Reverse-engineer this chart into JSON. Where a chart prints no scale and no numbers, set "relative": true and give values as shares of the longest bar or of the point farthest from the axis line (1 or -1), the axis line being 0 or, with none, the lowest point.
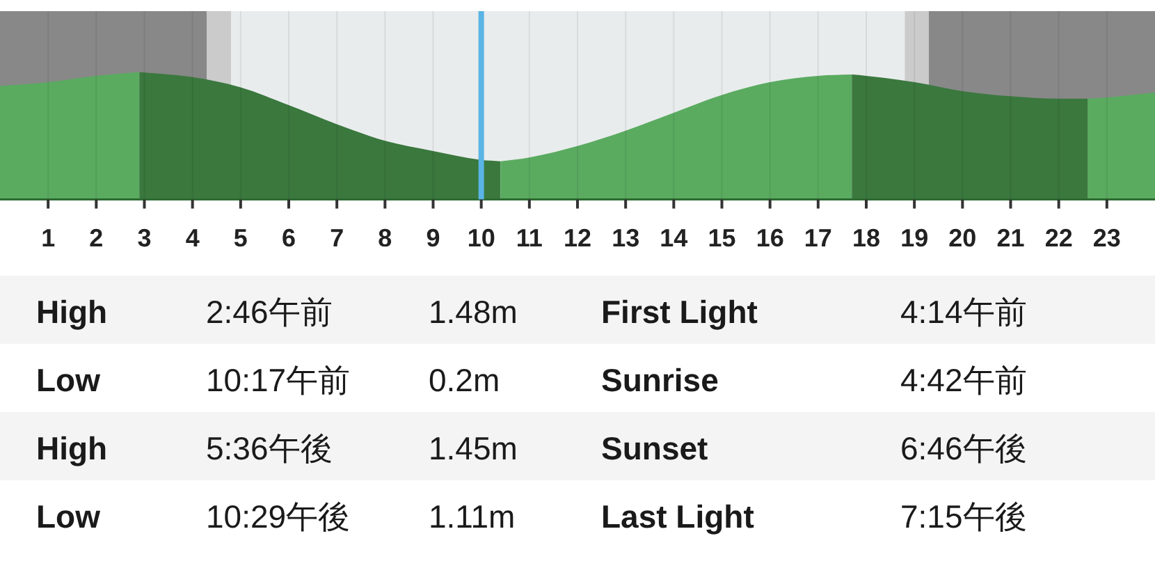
{
  "chart_data": [
    {
      "type": "area",
      "relative": true,
      "xlim": [
        0,
        24
      ],
      "xticks": [
        1,
        2,
        3,
        4,
        5,
        6,
        7,
        8,
        9,
        10,
        11,
        12,
        13,
        14,
        15,
        16,
        17,
        18,
        19,
        20,
        21,
        22,
        23
      ],
      "grid": "x",
      "tick_labels": "x",
      "series": [
        {
          "color": "#5aab60",
          "x": [
            0,
            1,
            2,
            2.9
          ],
          "values": [
            0.89,
            0.92,
            0.97,
            1
          ]
        },
        {
          "color": "#3a783e",
          "x": [
            2.9,
            4,
            5,
            6,
            7,
            8,
            9,
            10,
            10.4
          ],
          "values": [
            1,
            0.96,
            0.88,
            0.74,
            0.59,
            0.46,
            0.38,
            0.31,
            0.3
          ]
        },
        {
          "color": "#5aab60",
          "x": [
            10.4,
            11,
            12,
            13,
            14,
            15,
            16,
            17,
            17.7
          ],
          "values": [
            0.3,
            0.33,
            0.42,
            0.54,
            0.68,
            0.82,
            0.92,
            0.97,
            0.98
          ]
        },
        {
          "color": "#3a783e",
          "x": [
            17.7,
            18,
            19,
            20,
            21,
            22,
            22.6
          ],
          "values": [
            0.98,
            0.97,
            0.92,
            0.85,
            0.81,
            0.79,
            0.79
          ]
        },
        {
          "color": "#5aab60",
          "x": [
            22.6,
            23,
            24
          ],
          "values": [
            0.79,
            0.8,
            0.84
          ]
        }
      ],
      "bands": [
        {
          "axis": "x",
          "from": 0,
          "to": 4.3,
          "color": "#888888"
        },
        {
          "axis": "x",
          "from": 4.3,
          "to": 4.8,
          "color": "#cbcbcb"
        },
        {
          "axis": "x",
          "from": 4.8,
          "to": 18.8,
          "color": "#e9eced"
        },
        {
          "axis": "x",
          "from": 18.8,
          "to": 19.3,
          "color": "#cbcbcb"
        },
        {
          "axis": "x",
          "from": 19.3,
          "to": 24,
          "color": "#888888"
        }
      ],
      "ref_lines": [
        {
          "axis": "x",
          "value": 10,
          "color": "#5ab4e5"
        }
      ]
    },
    {
      "type": "other",
      "annotations": [
        "High",
        "2:46午前",
        "1.48m",
        "First Light",
        "4:14午前",
        "Low",
        "10:17午前",
        "0.2m",
        "Sunrise",
        "4:42午前",
        "High",
        "5:36午後",
        "1.45m",
        "Sunset",
        "6:46午後",
        "Low",
        "10:29午後",
        "1.11m",
        "Last Light",
        "7:15午後"
      ]
    }
  ]
}
